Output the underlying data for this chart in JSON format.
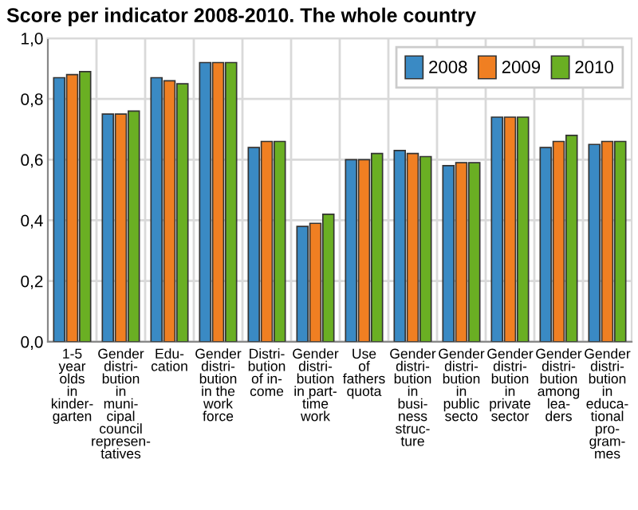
{
  "chart_data": {
    "type": "bar",
    "title": "Score per indicator 2008-2010. The whole country",
    "categories": [
      "1-5\nyear\nolds\nin\nkinder-\ngarten",
      "Gender\ndistri-\nbution\nin\nmuni-\ncipal\ncouncil\nrepresen-\ntatives",
      "Edu-\ncation",
      "Gender\ndistri-\nbution\nin the\nwork\nforce",
      "Distri-\nbution\nof in-\ncome",
      "Gender\ndistri-\nbution\nin part-\ntime\nwork",
      "Use\nof\nfathers\nquota",
      "Gender\ndistri-\nbution\nin\nbusi-\nness\nstruc-\nture",
      "Gender\ndistri-\nbution\nin\npublic\nsecto",
      "Gender\ndistri-\nbution\nin\nprivate\nsector",
      "Gender\ndistri-\nbution\namong\nlea-\nders",
      "Gender\ndistri-\nbution\nin\neduca-\ntional\npro-\ngram-\nmes"
    ],
    "series": [
      {
        "name": "2008",
        "color": "#3a8ac4",
        "values": [
          0.87,
          0.75,
          0.87,
          0.92,
          0.64,
          0.38,
          0.6,
          0.63,
          0.58,
          0.74,
          0.64,
          0.65
        ]
      },
      {
        "name": "2009",
        "color": "#f07f22",
        "values": [
          0.88,
          0.75,
          0.86,
          0.92,
          0.66,
          0.39,
          0.6,
          0.62,
          0.59,
          0.74,
          0.66,
          0.66
        ]
      },
      {
        "name": "2010",
        "color": "#6aaf23",
        "values": [
          0.89,
          0.76,
          0.85,
          0.92,
          0.66,
          0.42,
          0.62,
          0.61,
          0.59,
          0.74,
          0.68,
          0.66
        ]
      }
    ],
    "ylim": [
      0,
      1
    ],
    "yticks": [
      {
        "value": 0,
        "label": "0,0"
      },
      {
        "value": 0.2,
        "label": "0,2"
      },
      {
        "value": 0.4,
        "label": "0,4"
      },
      {
        "value": 0.6,
        "label": "0,6"
      },
      {
        "value": 0.8,
        "label": "0,8"
      },
      {
        "value": 1,
        "label": "1,0"
      }
    ],
    "grid": true,
    "legend": "top right"
  }
}
